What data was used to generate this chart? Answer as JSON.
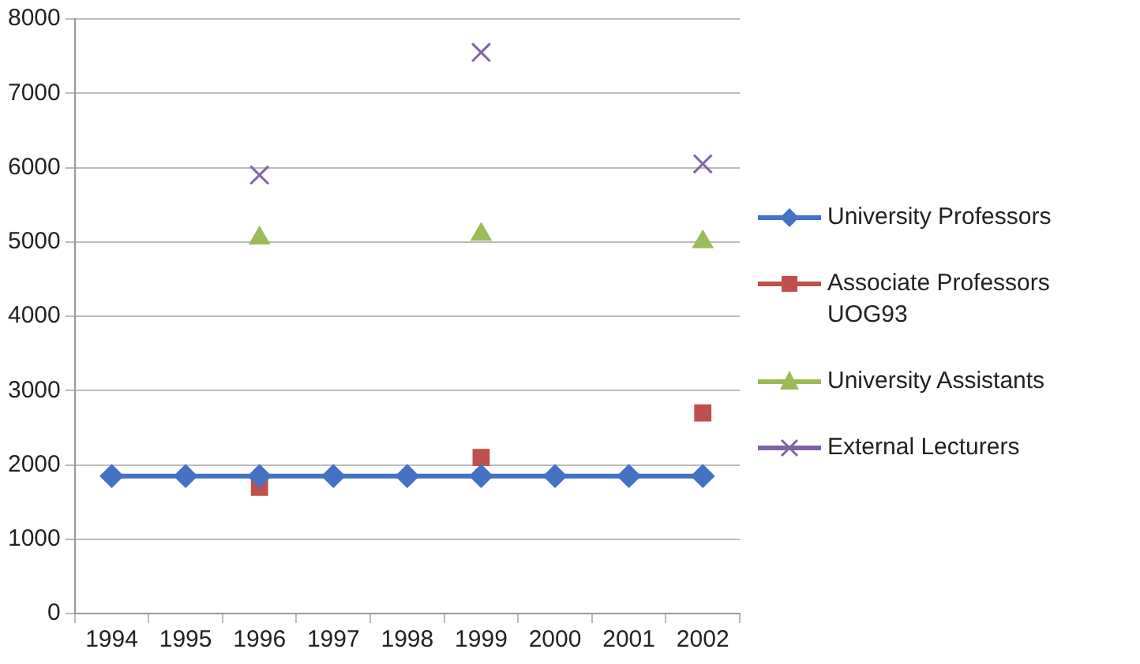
{
  "chart_data": {
    "type": "line",
    "categories": [
      "1994",
      "1995",
      "1996",
      "1997",
      "1998",
      "1999",
      "2000",
      "2001",
      "2002"
    ],
    "series": [
      {
        "name": "University Professors",
        "color": "#4472c4",
        "marker": "diamond",
        "values": [
          1850,
          1850,
          1850,
          1850,
          1850,
          1850,
          1850,
          1850,
          1850
        ]
      },
      {
        "name": "Associate Professors UOG93",
        "type": "scatter",
        "color": "#c0504d",
        "marker": "square",
        "values": [
          null,
          null,
          1700,
          null,
          null,
          2100,
          null,
          null,
          2700
        ]
      },
      {
        "name": "University Assistants",
        "type": "scatter",
        "color": "#9bbb59",
        "marker": "triangle",
        "values": [
          null,
          null,
          5050,
          null,
          null,
          5100,
          null,
          null,
          5000
        ]
      },
      {
        "name": "External Lecturers",
        "type": "scatter",
        "color": "#8064a2",
        "marker": "cross",
        "values": [
          null,
          null,
          5900,
          null,
          null,
          7550,
          null,
          null,
          6050
        ]
      }
    ],
    "ylim": [
      0,
      8000
    ],
    "yticks": [
      0,
      1000,
      2000,
      3000,
      4000,
      5000,
      6000,
      7000,
      8000
    ],
    "grid": "y",
    "legend": "right"
  }
}
